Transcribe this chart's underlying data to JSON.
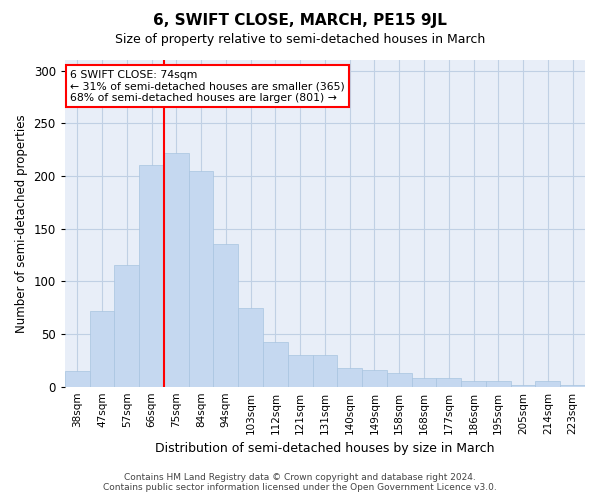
{
  "title": "6, SWIFT CLOSE, MARCH, PE15 9JL",
  "subtitle": "Size of property relative to semi-detached houses in March",
  "xlabel": "Distribution of semi-detached houses by size in March",
  "ylabel": "Number of semi-detached properties",
  "categories": [
    "38sqm",
    "47sqm",
    "57sqm",
    "66sqm",
    "75sqm",
    "84sqm",
    "94sqm",
    "103sqm",
    "112sqm",
    "121sqm",
    "131sqm",
    "140sqm",
    "149sqm",
    "158sqm",
    "168sqm",
    "177sqm",
    "186sqm",
    "195sqm",
    "205sqm",
    "214sqm",
    "223sqm"
  ],
  "values": [
    15,
    72,
    115,
    210,
    222,
    205,
    135,
    75,
    42,
    30,
    30,
    18,
    16,
    13,
    8,
    8,
    5,
    5,
    2,
    5,
    2
  ],
  "bar_color": "#c5d8f0",
  "bar_edge_color": "#a8c4e0",
  "grid_color": "#c0d0e4",
  "background_color": "#e8eef8",
  "property_label": "6 SWIFT CLOSE: 74sqm",
  "pct_smaller": 31,
  "pct_larger": 68,
  "count_smaller": 365,
  "count_larger": 801,
  "vline_bin_index": 4,
  "footer_line1": "Contains HM Land Registry data © Crown copyright and database right 2024.",
  "footer_line2": "Contains public sector information licensed under the Open Government Licence v3.0.",
  "ylim": [
    0,
    310
  ],
  "yticks": [
    0,
    50,
    100,
    150,
    200,
    250,
    300
  ]
}
